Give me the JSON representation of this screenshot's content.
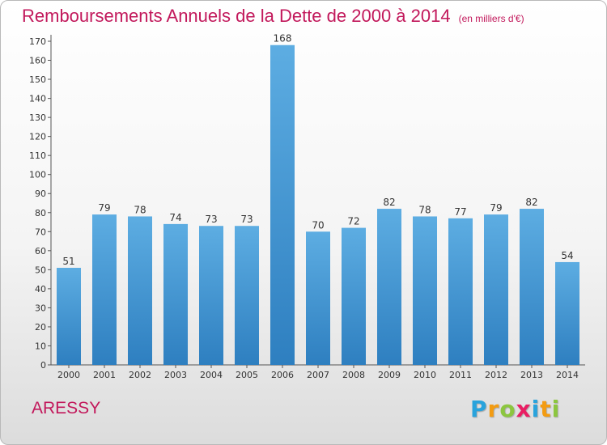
{
  "chart_data": {
    "type": "bar",
    "title": "Remboursements Annuels de la Dette de 2000 à 2014",
    "subtitle": "(en milliers d'€)",
    "categories": [
      "2000",
      "2001",
      "2002",
      "2003",
      "2004",
      "2005",
      "2006",
      "2007",
      "2008",
      "2009",
      "2010",
      "2011",
      "2012",
      "2013",
      "2014"
    ],
    "values": [
      51,
      79,
      78,
      74,
      73,
      73,
      168,
      70,
      72,
      82,
      78,
      77,
      79,
      82,
      54
    ],
    "ylim": [
      0,
      170
    ],
    "ytick_step": 10,
    "grid": false,
    "bar_color_top": "#5dade2",
    "bar_color_bottom": "#2e7fc0"
  },
  "footer": {
    "town": "ARESSY",
    "logo": {
      "letters": [
        "P",
        "r",
        "o",
        "x",
        "i",
        "t",
        "i"
      ],
      "colors": [
        "#29a3dc",
        "#f39c12",
        "#8cc63f",
        "#e91e63",
        "#29a3dc",
        "#f39c12",
        "#8cc63f"
      ]
    }
  }
}
